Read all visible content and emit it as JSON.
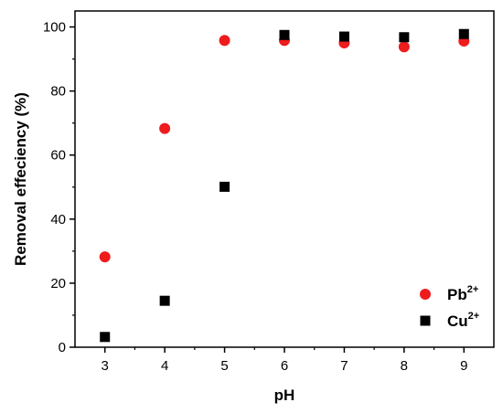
{
  "chart_data": {
    "type": "scatter",
    "title": "",
    "xlabel": "pH",
    "ylabel": "Removal effeciency (%)",
    "xlim": [
      2.5,
      9.5
    ],
    "ylim": [
      0,
      105
    ],
    "xticks": [
      3,
      4,
      5,
      6,
      7,
      8,
      9
    ],
    "yticks": [
      0,
      20,
      40,
      60,
      80,
      100
    ],
    "grid": false,
    "legend_position": "bottom-right",
    "series": [
      {
        "name": "Pb",
        "name_superscript": "2+",
        "marker": "circle",
        "color": "#ee1c1c",
        "x": [
          3,
          4,
          5,
          6,
          7,
          8,
          9
        ],
        "y": [
          28.2,
          68.3,
          95.8,
          95.8,
          95.0,
          93.8,
          95.6
        ]
      },
      {
        "name": "Cu",
        "name_superscript": "2+",
        "marker": "square",
        "color": "#000000",
        "x": [
          3,
          4,
          5,
          6,
          7,
          8,
          9
        ],
        "y": [
          3.2,
          14.5,
          50.1,
          97.5,
          97.0,
          96.8,
          97.8
        ]
      }
    ]
  }
}
